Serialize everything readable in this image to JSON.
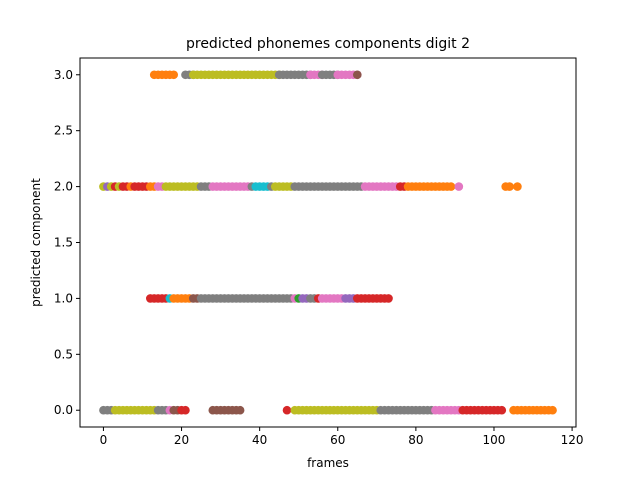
{
  "chart_data": {
    "type": "scatter",
    "title": "predicted phonemes components digit 2",
    "xlabel": "frames",
    "ylabel": "predicted component",
    "xlim": [
      -6,
      121
    ],
    "ylim": [
      -0.15,
      3.15
    ],
    "xticks": [
      0,
      20,
      40,
      60,
      80,
      100,
      120
    ],
    "yticks": [
      0.0,
      0.5,
      1.0,
      1.5,
      2.0,
      2.5,
      3.0
    ],
    "xtick_labels": [
      "0",
      "20",
      "40",
      "60",
      "80",
      "100",
      "120"
    ],
    "ytick_labels": [
      "0.0",
      "0.5",
      "1.0",
      "1.5",
      "2.0",
      "2.5",
      "3.0"
    ],
    "grid": false,
    "legend": "none",
    "palette": {
      "blue": "#1f77b4",
      "orange": "#ff7f0e",
      "green": "#2ca02c",
      "red": "#d62728",
      "purple": "#9467bd",
      "brown": "#8c564b",
      "pink": "#e377c2",
      "gray": "#7f7f7f",
      "olive": "#bcbd22",
      "cyan": "#17becf"
    },
    "segments": [
      {
        "y": 3,
        "x_start": 13,
        "x_end": 18,
        "color": "orange"
      },
      {
        "y": 3,
        "x_start": 21,
        "x_end": 23,
        "color": "gray"
      },
      {
        "y": 3,
        "x_start": 23,
        "x_end": 45,
        "color": "olive"
      },
      {
        "y": 3,
        "x_start": 45,
        "x_end": 53,
        "color": "gray"
      },
      {
        "y": 3,
        "x_start": 53,
        "x_end": 56,
        "color": "pink"
      },
      {
        "y": 3,
        "x_start": 56,
        "x_end": 60,
        "color": "gray"
      },
      {
        "y": 3,
        "x_start": 60,
        "x_end": 65,
        "color": "pink"
      },
      {
        "y": 3,
        "x_start": 65,
        "x_end": 65,
        "color": "brown"
      },
      {
        "y": 2,
        "x_start": 0,
        "x_end": 0,
        "color": "olive"
      },
      {
        "y": 2,
        "x_start": 1,
        "x_end": 1,
        "color": "purple"
      },
      {
        "y": 2,
        "x_start": 2,
        "x_end": 2,
        "color": "olive"
      },
      {
        "y": 2,
        "x_start": 3,
        "x_end": 3,
        "color": "red"
      },
      {
        "y": 2,
        "x_start": 4,
        "x_end": 4,
        "color": "olive"
      },
      {
        "y": 2,
        "x_start": 5,
        "x_end": 6,
        "color": "red"
      },
      {
        "y": 2,
        "x_start": 7,
        "x_end": 7,
        "color": "orange"
      },
      {
        "y": 2,
        "x_start": 8,
        "x_end": 11,
        "color": "red"
      },
      {
        "y": 2,
        "x_start": 12,
        "x_end": 13,
        "color": "orange"
      },
      {
        "y": 2,
        "x_start": 14,
        "x_end": 15,
        "color": "pink"
      },
      {
        "y": 2,
        "x_start": 16,
        "x_end": 24,
        "color": "olive"
      },
      {
        "y": 2,
        "x_start": 25,
        "x_end": 27,
        "color": "gray"
      },
      {
        "y": 2,
        "x_start": 28,
        "x_end": 37,
        "color": "pink"
      },
      {
        "y": 2,
        "x_start": 38,
        "x_end": 38,
        "color": "gray"
      },
      {
        "y": 2,
        "x_start": 39,
        "x_end": 42,
        "color": "cyan"
      },
      {
        "y": 2,
        "x_start": 43,
        "x_end": 43,
        "color": "gray"
      },
      {
        "y": 2,
        "x_start": 44,
        "x_end": 48,
        "color": "olive"
      },
      {
        "y": 2,
        "x_start": 49,
        "x_end": 66,
        "color": "gray"
      },
      {
        "y": 2,
        "x_start": 67,
        "x_end": 75,
        "color": "pink"
      },
      {
        "y": 2,
        "x_start": 76,
        "x_end": 77,
        "color": "red"
      },
      {
        "y": 2,
        "x_start": 78,
        "x_end": 89,
        "color": "orange"
      },
      {
        "y": 2,
        "x_start": 91,
        "x_end": 91,
        "color": "pink"
      },
      {
        "y": 2,
        "x_start": 103,
        "x_end": 104,
        "color": "orange"
      },
      {
        "y": 2,
        "x_start": 106,
        "x_end": 106,
        "color": "orange"
      },
      {
        "y": 1,
        "x_start": 12,
        "x_end": 16,
        "color": "red"
      },
      {
        "y": 1,
        "x_start": 17,
        "x_end": 17,
        "color": "cyan"
      },
      {
        "y": 1,
        "x_start": 18,
        "x_end": 22,
        "color": "orange"
      },
      {
        "y": 1,
        "x_start": 23,
        "x_end": 24,
        "color": "brown"
      },
      {
        "y": 1,
        "x_start": 25,
        "x_end": 48,
        "color": "gray"
      },
      {
        "y": 1,
        "x_start": 49,
        "x_end": 49,
        "color": "pink"
      },
      {
        "y": 1,
        "x_start": 50,
        "x_end": 50,
        "color": "green"
      },
      {
        "y": 1,
        "x_start": 51,
        "x_end": 52,
        "color": "purple"
      },
      {
        "y": 1,
        "x_start": 53,
        "x_end": 54,
        "color": "gray"
      },
      {
        "y": 1,
        "x_start": 55,
        "x_end": 55,
        "color": "red"
      },
      {
        "y": 1,
        "x_start": 56,
        "x_end": 61,
        "color": "pink"
      },
      {
        "y": 1,
        "x_start": 62,
        "x_end": 64,
        "color": "purple"
      },
      {
        "y": 1,
        "x_start": 65,
        "x_end": 73,
        "color": "red"
      },
      {
        "y": 0,
        "x_start": 0,
        "x_end": 2,
        "color": "gray"
      },
      {
        "y": 0,
        "x_start": 3,
        "x_end": 13,
        "color": "olive"
      },
      {
        "y": 0,
        "x_start": 14,
        "x_end": 16,
        "color": "gray"
      },
      {
        "y": 0,
        "x_start": 17,
        "x_end": 17,
        "color": "pink"
      },
      {
        "y": 0,
        "x_start": 18,
        "x_end": 19,
        "color": "brown"
      },
      {
        "y": 0,
        "x_start": 20,
        "x_end": 21,
        "color": "red"
      },
      {
        "y": 0,
        "x_start": 28,
        "x_end": 30,
        "color": "brown"
      },
      {
        "y": 0,
        "x_start": 31,
        "x_end": 35,
        "color": "brown"
      },
      {
        "y": 0,
        "x_start": 47,
        "x_end": 47,
        "color": "red"
      },
      {
        "y": 0,
        "x_start": 49,
        "x_end": 70,
        "color": "olive"
      },
      {
        "y": 0,
        "x_start": 71,
        "x_end": 84,
        "color": "gray"
      },
      {
        "y": 0,
        "x_start": 85,
        "x_end": 91,
        "color": "pink"
      },
      {
        "y": 0,
        "x_start": 92,
        "x_end": 102,
        "color": "red"
      },
      {
        "y": 0,
        "x_start": 105,
        "x_end": 115,
        "color": "orange"
      }
    ]
  }
}
